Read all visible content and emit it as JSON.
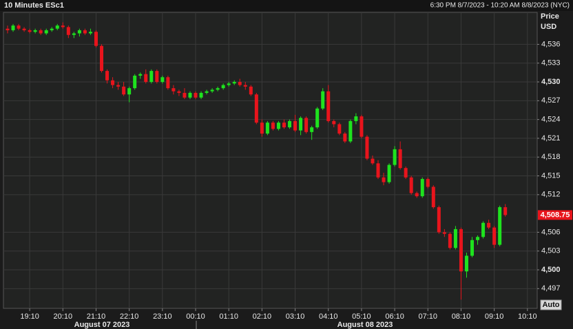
{
  "chart_data": {
    "type": "candlestick",
    "title": "10 Minutes ESc1",
    "subtitle": "6:30 PM 8/7/2023 - 10:20 AM 8/8/2023 (NYC)",
    "y_axis_label": "Price",
    "y_axis_unit": "USD",
    "date_labels": [
      "August 07 2023",
      "August 08 2023"
    ],
    "auto_button": "Auto",
    "last_price_label": "4,508.75",
    "up_color": "#1ee31e",
    "down_color": "#e8141c",
    "grid": true,
    "categories": [
      null,
      null,
      null,
      null,
      "19:10",
      null,
      null,
      null,
      null,
      null,
      "20:10",
      null,
      null,
      null,
      null,
      null,
      "21:10",
      null,
      null,
      null,
      null,
      null,
      "22:10",
      null,
      null,
      null,
      null,
      null,
      "23:10",
      null,
      null,
      null,
      null,
      null,
      "00:10",
      null,
      null,
      null,
      null,
      null,
      "01:10",
      null,
      null,
      null,
      null,
      null,
      "02:10",
      null,
      null,
      null,
      null,
      null,
      "03:10",
      null,
      null,
      null,
      null,
      null,
      "04:10",
      null,
      null,
      null,
      null,
      null,
      "05:10",
      null,
      null,
      null,
      null,
      null,
      "06:10",
      null,
      null,
      null,
      null,
      null,
      "07:10",
      null,
      null,
      null,
      null,
      null,
      "08:10",
      null,
      null,
      null,
      null,
      null,
      "09:10",
      null,
      null,
      null,
      null,
      null,
      "10:10",
      null,
      null,
      null,
      null,
      null,
      null,
      null
    ],
    "open": [
      4538.5,
      4538.25,
      4539,
      4538.5,
      4538.25,
      4538,
      4538.25,
      4537.75,
      4538.25,
      4538.5,
      4539,
      4538.75,
      4537.5,
      4537.75,
      4538.25,
      4537.75,
      4538,
      4535.75,
      4531.75,
      4530.25,
      4529.5,
      4529.25,
      4528,
      4529,
      4531,
      4531.25,
      4530,
      4531.75,
      4530,
      4530.75,
      4529,
      4528.5,
      4528.25,
      4527.5,
      4528.25,
      4527.5,
      4528.25,
      4528.5,
      4528.75,
      4529,
      4529.5,
      4529.75,
      4530,
      4529.5,
      4529.25,
      4528,
      4523.5,
      4521.75,
      4523.5,
      4522.5,
      4523.5,
      4522.75,
      4523.75,
      4522.25,
      4524.25,
      4522,
      4522.75,
      4525.75,
      4528.5,
      4523.75,
      4523.25,
      4521.75,
      4520.5,
      4523.75,
      4524.5,
      4521.25,
      4517.75,
      4517,
      4514.75,
      4514,
      4516.75,
      4519.25,
      4516.25,
      4514.75,
      4512.25,
      4511.75,
      4514.5,
      4513.25,
      4510,
      4506,
      4505.75,
      4503.5,
      4506.5,
      4499.75,
      4502.25,
      4504.75,
      4505.25,
      4507.5,
      4506.75,
      4504,
      4510,
      null,
      null,
      null,
      null,
      null,
      null,
      null,
      null,
      null,
      null,
      null
    ],
    "high": [
      4539,
      4539.25,
      4539.25,
      4538.75,
      4538.5,
      4538.5,
      4538.5,
      4538.5,
      4538.75,
      4539.25,
      4539.5,
      4539,
      4538,
      4538.5,
      4538.5,
      4538.5,
      4538.25,
      4536,
      4532,
      4530.75,
      4530,
      4530,
      4529.25,
      4531.25,
      4531.5,
      4532,
      4532,
      4532,
      4531,
      4531,
      4529.5,
      4528.75,
      4529,
      4528.5,
      4528.5,
      4528.5,
      4528.75,
      4529,
      4529.25,
      4529.75,
      4530,
      4530.25,
      4530.5,
      4530,
      4529.5,
      4528.25,
      4524,
      4523.75,
      4523.75,
      4523.75,
      4524,
      4524,
      4524.75,
      4524.5,
      4524.5,
      4523,
      4526,
      4529,
      4529.5,
      4524,
      4523.5,
      4522,
      4524,
      4525,
      4524.75,
      4521.5,
      4518.25,
      4517.5,
      4515.5,
      4517,
      4519.75,
      4520.5,
      4516.5,
      4515,
      4512.5,
      4514.75,
      4514.75,
      4513.5,
      4510.25,
      4506.5,
      4506,
      4507,
      4506.75,
      4502.75,
      4505.25,
      4505.5,
      4507.75,
      4508,
      4507,
      4510.25,
      4510.5,
      null,
      null,
      null,
      null,
      null,
      null,
      null,
      null,
      null,
      null,
      null
    ],
    "low": [
      4537.75,
      4538,
      4538.25,
      4538,
      4537.75,
      4537.75,
      4537.5,
      4537.5,
      4538,
      4538.25,
      4538.5,
      4537,
      4537,
      4537.25,
      4537.5,
      4537.5,
      4535.5,
      4531.5,
      4529.75,
      4529,
      4528.75,
      4527.75,
      4526.75,
      4528.75,
      4530.5,
      4529.75,
      4529.75,
      4529.75,
      4529.75,
      4528.75,
      4528,
      4527.75,
      4527.25,
      4527.25,
      4527.25,
      4527.25,
      4528,
      4528.25,
      4528.5,
      4528.75,
      4529.25,
      4529.5,
      4529.25,
      4528.75,
      4527.75,
      4523.25,
      4521.25,
      4521.5,
      4522.25,
      4522.25,
      4522.5,
      4522.5,
      4522,
      4521.5,
      4521.75,
      4520.75,
      4522.5,
      4525.5,
      4523.5,
      4522.75,
      4521.5,
      4520.25,
      4520.25,
      4523.25,
      4521,
      4517.5,
      4516.75,
      4514.5,
      4513.5,
      4513.75,
      4516.5,
      4516,
      4514.5,
      4512,
      4511.5,
      4511.5,
      4513,
      4509.75,
      4505.75,
      4505.25,
      4503.25,
      4503.25,
      4495.25,
      4498.75,
      4502,
      4504,
      4505,
      4506.5,
      4503.5,
      4503.75,
      4508.5,
      null,
      null,
      null,
      null,
      null,
      null,
      null,
      null,
      null,
      null,
      null
    ],
    "close": [
      4538.25,
      4539,
      4538.5,
      4538.25,
      4538,
      4538.25,
      4537.75,
      4538.25,
      4538.5,
      4539,
      4538.75,
      4537.5,
      4537.75,
      4538.25,
      4537.75,
      4538,
      4535.75,
      4531.75,
      4530.25,
      4529.5,
      4529.25,
      4528,
      4529,
      4531,
      4531.25,
      4530,
      4531.75,
      4530,
      4530.75,
      4529,
      4528.5,
      4528.25,
      4527.5,
      4528.25,
      4527.5,
      4528.25,
      4528.5,
      4528.75,
      4529,
      4529.5,
      4529.75,
      4530,
      4529.5,
      4529.25,
      4528,
      4523.5,
      4521.75,
      4523.5,
      4522.5,
      4523.5,
      4522.75,
      4523.75,
      4522.25,
      4524.25,
      4522,
      4522.75,
      4525.75,
      4528.5,
      4523.75,
      4523.25,
      4521.75,
      4520.5,
      4523.75,
      4524.5,
      4521.25,
      4517.75,
      4517,
      4514.75,
      4514,
      4516.75,
      4519.25,
      4516.25,
      4514.75,
      4512.25,
      4511.75,
      4514.5,
      4513.25,
      4510,
      4506,
      4505.75,
      4503.5,
      4506.5,
      4499.75,
      4502.25,
      4504.75,
      4505.25,
      4507.5,
      4506.75,
      4504,
      4510,
      4508.75,
      null,
      null,
      null,
      null,
      null,
      null,
      null,
      null,
      null,
      null,
      null
    ],
    "ylim": [
      4493.85,
      4541.1
    ],
    "yticks": [
      {
        "value": 4497,
        "label": "4,497"
      },
      {
        "value": 4500,
        "label": "4,500"
      },
      {
        "value": 4503,
        "label": "4,503"
      },
      {
        "value": 4506,
        "label": "4,506"
      },
      {
        "value": 4512,
        "label": "4,512"
      },
      {
        "value": 4515,
        "label": "4,515"
      },
      {
        "value": 4518,
        "label": "4,518"
      },
      {
        "value": 4521,
        "label": "4,521"
      },
      {
        "value": 4524,
        "label": "4,524"
      },
      {
        "value": 4527,
        "label": "4,527"
      },
      {
        "value": 4530,
        "label": "4,530"
      },
      {
        "value": 4533,
        "label": "4,533"
      },
      {
        "value": 4536,
        "label": "4,536"
      }
    ]
  }
}
